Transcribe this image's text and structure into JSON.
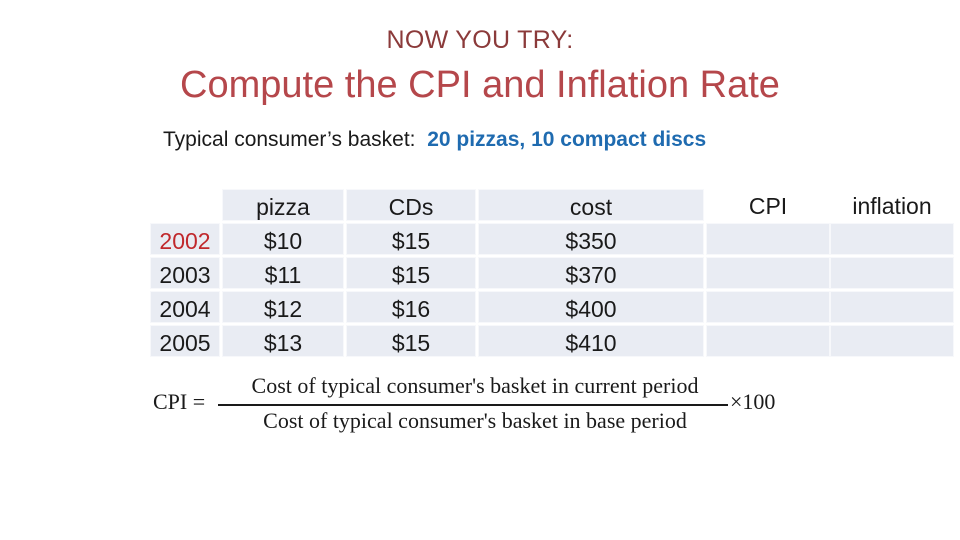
{
  "kicker": "NOW YOU TRY:",
  "title": "Compute the CPI and Inflation Rate",
  "basket": {
    "prefix": "Typical consumer’s basket:",
    "items": "20 pizzas, 10 compact discs"
  },
  "table": {
    "headers": [
      "",
      "pizza",
      "CDs",
      "cost",
      "CPI",
      "inflation"
    ],
    "rows": [
      {
        "year": "2002",
        "pizza": "$10",
        "cds": "$15",
        "cost": "$350",
        "cpi": "",
        "inflation": ""
      },
      {
        "year": "2003",
        "pizza": "$11",
        "cds": "$15",
        "cost": "$370",
        "cpi": "",
        "inflation": ""
      },
      {
        "year": "2004",
        "pizza": "$12",
        "cds": "$16",
        "cost": "$400",
        "cpi": "",
        "inflation": ""
      },
      {
        "year": "2005",
        "pizza": "$13",
        "cds": "$15",
        "cost": "$410",
        "cpi": "",
        "inflation": ""
      }
    ],
    "highlight_color": "#c0282c"
  },
  "formula": {
    "lhs": "CPI =",
    "numerator": "Cost of typical consumer's basket in current period",
    "denominator": "Cost of typical consumer's basket in base period",
    "rhs": "×100"
  },
  "colors": {
    "kicker": "#8b3a3a",
    "title": "#b5474b",
    "basket_items": "#1f6bb0",
    "cell_fill": "#e9ecf3"
  }
}
